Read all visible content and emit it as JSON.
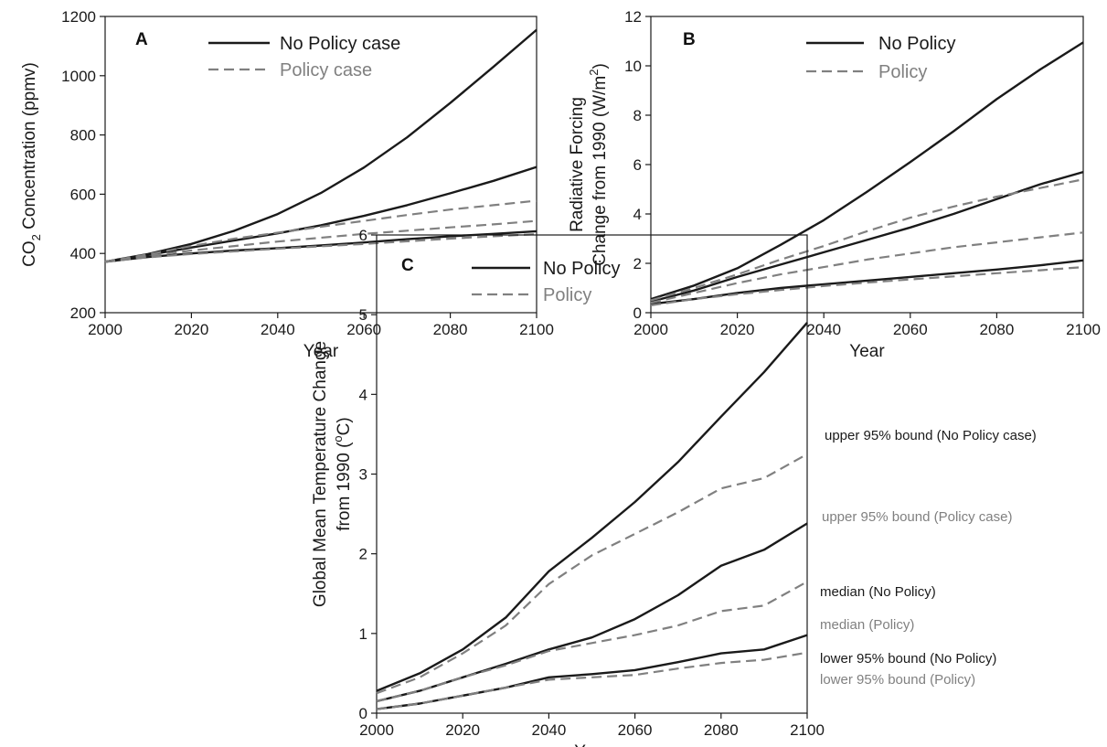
{
  "chart_data": [
    {
      "type": "line",
      "panel_label": "A",
      "xlabel": "Year",
      "ylabel": "CO2 Concentration (ppmv)",
      "ylabel_parts": [
        "CO",
        "2",
        " Concentration (ppmv)"
      ],
      "xlim": [
        2000,
        2100
      ],
      "ylim": [
        200,
        1200
      ],
      "xticks": [
        2000,
        2020,
        2040,
        2060,
        2080,
        2100
      ],
      "yticks": [
        200,
        400,
        600,
        800,
        1000,
        1200
      ],
      "legend": [
        {
          "label": "No Policy case",
          "style": "solid",
          "color": "#1a1a1a"
        },
        {
          "label": "Policy case",
          "style": "dashed",
          "color": "#808080"
        }
      ],
      "series": [
        {
          "style": "solid",
          "x": [
            2000,
            2010,
            2020,
            2030,
            2040,
            2050,
            2060,
            2070,
            2080,
            2090,
            2100
          ],
          "y": [
            372,
            398,
            432,
            477,
            533,
            604,
            690,
            792,
            908,
            1030,
            1155
          ]
        },
        {
          "style": "solid",
          "x": [
            2000,
            2010,
            2020,
            2030,
            2040,
            2050,
            2060,
            2070,
            2080,
            2090,
            2100
          ],
          "y": [
            372,
            395,
            420,
            444,
            468,
            495,
            527,
            563,
            603,
            645,
            692
          ]
        },
        {
          "style": "solid",
          "x": [
            2000,
            2010,
            2020,
            2030,
            2040,
            2050,
            2060,
            2070,
            2080,
            2090,
            2100
          ],
          "y": [
            372,
            388,
            400,
            410,
            418,
            427,
            437,
            448,
            458,
            466,
            475
          ]
        },
        {
          "style": "dashed",
          "x": [
            2000,
            2010,
            2020,
            2030,
            2040,
            2050,
            2060,
            2070,
            2080,
            2090,
            2100
          ],
          "y": [
            372,
            397,
            425,
            450,
            470,
            490,
            510,
            530,
            548,
            563,
            578
          ]
        },
        {
          "style": "dashed",
          "x": [
            2000,
            2010,
            2020,
            2030,
            2040,
            2050,
            2060,
            2070,
            2080,
            2090,
            2100
          ],
          "y": [
            372,
            392,
            410,
            425,
            440,
            453,
            466,
            477,
            488,
            498,
            510
          ]
        },
        {
          "style": "dashed",
          "x": [
            2000,
            2010,
            2020,
            2030,
            2040,
            2050,
            2060,
            2070,
            2080,
            2090,
            2100
          ],
          "y": [
            372,
            387,
            398,
            407,
            416,
            424,
            432,
            441,
            450,
            458,
            465
          ]
        }
      ]
    },
    {
      "type": "line",
      "panel_label": "B",
      "xlabel": "Year",
      "ylabel_line1": "Radiative Forcing",
      "ylabel_line2_parts": [
        "Change from 1990 (W/m",
        "2",
        ")"
      ],
      "xlim": [
        2000,
        2100
      ],
      "ylim": [
        0,
        12
      ],
      "xticks": [
        2000,
        2020,
        2040,
        2060,
        2080,
        2100
      ],
      "yticks": [
        0,
        2,
        4,
        6,
        8,
        10,
        12
      ],
      "legend": [
        {
          "label": "No Policy",
          "style": "solid",
          "color": "#1a1a1a"
        },
        {
          "label": "Policy",
          "style": "dashed",
          "color": "#808080"
        }
      ],
      "series": [
        {
          "style": "solid",
          "x": [
            2000,
            2010,
            2020,
            2030,
            2040,
            2050,
            2060,
            2070,
            2080,
            2090,
            2100
          ],
          "y": [
            0.55,
            1.1,
            1.8,
            2.75,
            3.75,
            4.9,
            6.1,
            7.35,
            8.65,
            9.85,
            10.95
          ]
        },
        {
          "style": "solid",
          "x": [
            2000,
            2010,
            2020,
            2030,
            2040,
            2050,
            2060,
            2070,
            2080,
            2090,
            2100
          ],
          "y": [
            0.45,
            0.9,
            1.45,
            1.95,
            2.45,
            2.95,
            3.45,
            4.0,
            4.6,
            5.2,
            5.7
          ]
        },
        {
          "style": "solid",
          "x": [
            2000,
            2010,
            2020,
            2030,
            2040,
            2050,
            2060,
            2070,
            2080,
            2090,
            2100
          ],
          "y": [
            0.35,
            0.55,
            0.8,
            1.0,
            1.15,
            1.3,
            1.45,
            1.6,
            1.75,
            1.92,
            2.12
          ]
        },
        {
          "style": "dashed",
          "x": [
            2000,
            2010,
            2020,
            2030,
            2040,
            2050,
            2060,
            2070,
            2080,
            2090,
            2100
          ],
          "y": [
            0.5,
            1.0,
            1.55,
            2.15,
            2.7,
            3.3,
            3.85,
            4.3,
            4.7,
            5.05,
            5.4
          ]
        },
        {
          "style": "dashed",
          "x": [
            2000,
            2010,
            2020,
            2030,
            2040,
            2050,
            2060,
            2070,
            2080,
            2090,
            2100
          ],
          "y": [
            0.4,
            0.8,
            1.2,
            1.55,
            1.85,
            2.15,
            2.4,
            2.65,
            2.85,
            3.05,
            3.25
          ]
        },
        {
          "style": "dashed",
          "x": [
            2000,
            2010,
            2020,
            2030,
            2040,
            2050,
            2060,
            2070,
            2080,
            2090,
            2100
          ],
          "y": [
            0.3,
            0.55,
            0.75,
            0.92,
            1.08,
            1.22,
            1.35,
            1.47,
            1.6,
            1.72,
            1.85
          ]
        }
      ]
    },
    {
      "type": "line",
      "panel_label": "C",
      "xlabel": "Year",
      "ylabel_line1": "Global Mean Temperature Change",
      "ylabel_line2_parts": [
        "from 1990 (",
        "o",
        "C)"
      ],
      "xlim": [
        2000,
        2100
      ],
      "ylim": [
        0,
        6
      ],
      "xticks": [
        2000,
        2020,
        2040,
        2060,
        2080,
        2100
      ],
      "yticks": [
        0,
        1,
        2,
        3,
        4,
        5,
        6
      ],
      "legend": [
        {
          "label": "No Policy",
          "style": "solid",
          "color": "#1a1a1a"
        },
        {
          "label": "Policy",
          "style": "dashed",
          "color": "#808080"
        }
      ],
      "series": [
        {
          "style": "solid",
          "label": "upper 95% bound (No Policy case)",
          "x": [
            2000,
            2010,
            2020,
            2030,
            2040,
            2050,
            2060,
            2070,
            2080,
            2090,
            2100
          ],
          "y": [
            0.28,
            0.5,
            0.8,
            1.2,
            1.78,
            2.2,
            2.65,
            3.15,
            3.72,
            4.28,
            4.9
          ]
        },
        {
          "style": "dashed",
          "label": "upper 95% bound (Policy case)",
          "x": [
            2000,
            2010,
            2020,
            2030,
            2040,
            2050,
            2060,
            2070,
            2080,
            2090,
            2100
          ],
          "y": [
            0.25,
            0.45,
            0.75,
            1.1,
            1.62,
            1.98,
            2.25,
            2.52,
            2.82,
            2.95,
            3.25
          ]
        },
        {
          "style": "solid",
          "label": "median (No Policy)",
          "x": [
            2000,
            2010,
            2020,
            2030,
            2040,
            2050,
            2060,
            2070,
            2080,
            2090,
            2100
          ],
          "y": [
            0.15,
            0.28,
            0.45,
            0.62,
            0.8,
            0.95,
            1.18,
            1.48,
            1.85,
            2.05,
            2.38
          ]
        },
        {
          "style": "dashed",
          "label": "median (Policy)",
          "x": [
            2000,
            2010,
            2020,
            2030,
            2040,
            2050,
            2060,
            2070,
            2080,
            2090,
            2100
          ],
          "y": [
            0.15,
            0.28,
            0.45,
            0.6,
            0.78,
            0.88,
            0.98,
            1.1,
            1.28,
            1.35,
            1.65
          ]
        },
        {
          "style": "solid",
          "label": "lower 95% bound (No Policy)",
          "x": [
            2000,
            2010,
            2020,
            2030,
            2040,
            2050,
            2060,
            2070,
            2080,
            2090,
            2100
          ],
          "y": [
            0.05,
            0.12,
            0.22,
            0.32,
            0.45,
            0.49,
            0.54,
            0.64,
            0.75,
            0.8,
            0.98
          ]
        },
        {
          "style": "dashed",
          "label": "lower 95% bound (Policy)",
          "x": [
            2000,
            2010,
            2020,
            2030,
            2040,
            2050,
            2060,
            2070,
            2080,
            2090,
            2100
          ],
          "y": [
            0.05,
            0.12,
            0.22,
            0.32,
            0.42,
            0.45,
            0.48,
            0.56,
            0.63,
            0.67,
            0.76
          ]
        }
      ],
      "annotations": [
        {
          "text": "upper 95% bound (No Policy case)",
          "color": "#1a1a1a"
        },
        {
          "text": "upper 95% bound (Policy case)",
          "color": "#808080"
        },
        {
          "text": "median (No Policy)",
          "color": "#1a1a1a"
        },
        {
          "text": "median (Policy)",
          "color": "#808080"
        },
        {
          "text": "lower 95% bound (No Policy)",
          "color": "#1a1a1a"
        },
        {
          "text": "lower 95% bound (Policy)",
          "color": "#808080"
        }
      ]
    }
  ],
  "colors": {
    "solid": "#1a1a1a",
    "dashed": "#808080",
    "axis": "#1a1a1a"
  }
}
